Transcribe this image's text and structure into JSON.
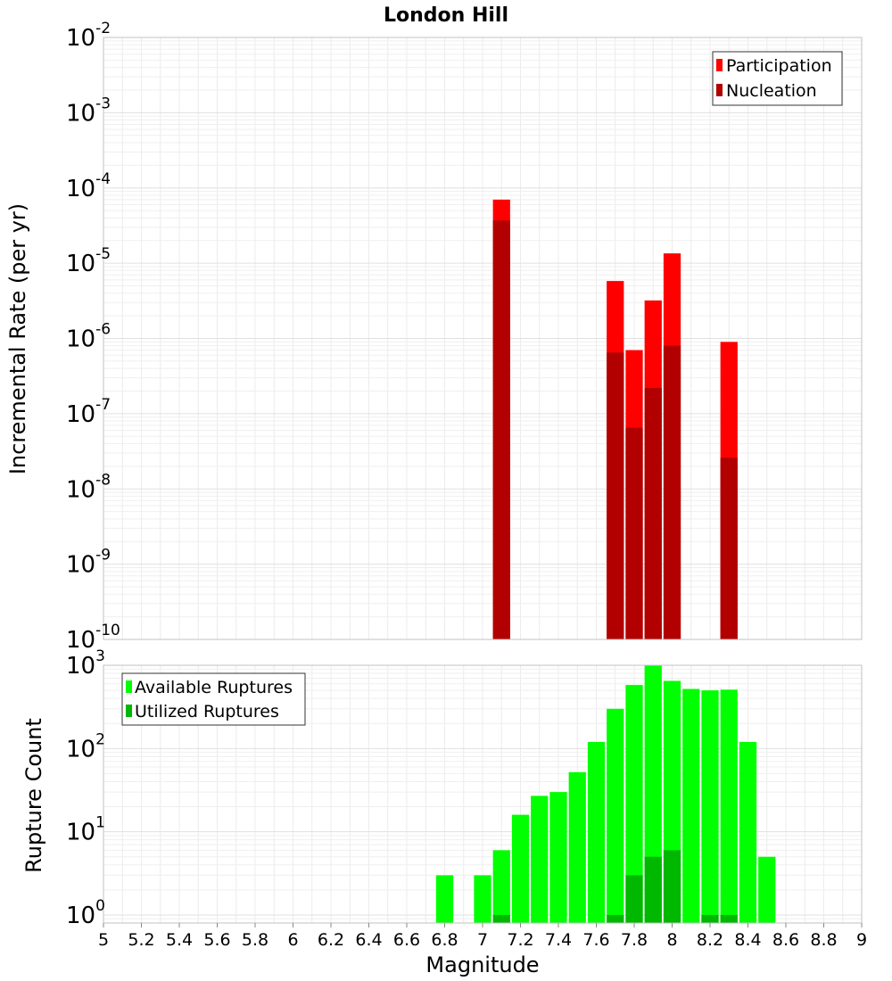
{
  "chart_data": [
    {
      "type": "bar",
      "title": "London Hill",
      "ylabel": "Incremental Rate (per yr)",
      "xlabel": "",
      "scale": "log",
      "ylim": [
        1e-10,
        0.01
      ],
      "xlim": [
        5,
        9
      ],
      "grid": true,
      "legend_position": "top-right",
      "y_ticks": [
        {
          "exp": "-10"
        },
        {
          "exp": "-9"
        },
        {
          "exp": "-8"
        },
        {
          "exp": "-7"
        },
        {
          "exp": "-6"
        },
        {
          "exp": "-5"
        },
        {
          "exp": "-4"
        },
        {
          "exp": "-3"
        },
        {
          "exp": "-2"
        }
      ],
      "series": [
        {
          "name": "Participation",
          "color": "#ff0000",
          "x": [
            7.1,
            7.7,
            7.8,
            7.9,
            8.0,
            8.3
          ],
          "values": [
            7e-05,
            5.8e-06,
            7e-07,
            3.2e-06,
            1.35e-05,
            9e-07
          ]
        },
        {
          "name": "Nucleation",
          "color": "#b20000",
          "x": [
            7.1,
            7.7,
            7.8,
            7.9,
            8.0,
            8.3
          ],
          "values": [
            3.7e-05,
            6.5e-07,
            6.5e-08,
            2.2e-07,
            8e-07,
            2.6e-08
          ]
        }
      ]
    },
    {
      "type": "bar",
      "title": "",
      "ylabel": "Rupture Count",
      "xlabel": "Magnitude",
      "scale": "log",
      "ylim": [
        0.8,
        1000
      ],
      "xlim": [
        5,
        9
      ],
      "grid": true,
      "legend_position": "top-left",
      "y_ticks": [
        {
          "exp": "0"
        },
        {
          "exp": "1"
        },
        {
          "exp": "2"
        },
        {
          "exp": "3"
        }
      ],
      "x_ticks": [
        "5",
        "5.2",
        "5.4",
        "5.6",
        "5.8",
        "6",
        "6.2",
        "6.4",
        "6.6",
        "6.8",
        "7",
        "7.2",
        "7.4",
        "7.6",
        "7.8",
        "8",
        "8.2",
        "8.4",
        "8.6",
        "8.8",
        "9"
      ],
      "series": [
        {
          "name": "Available Ruptures",
          "color": "#00ff00",
          "x": [
            6.8,
            7.0,
            7.1,
            7.2,
            7.3,
            7.4,
            7.5,
            7.6,
            7.7,
            7.8,
            7.9,
            8.0,
            8.1,
            8.2,
            8.3,
            8.4,
            8.5
          ],
          "values": [
            3,
            3,
            6,
            16,
            27,
            30,
            52,
            120,
            300,
            580,
            1000,
            650,
            520,
            500,
            510,
            120,
            5
          ]
        },
        {
          "name": "Utilized Ruptures",
          "color": "#00b800",
          "x": [
            7.1,
            7.7,
            7.8,
            7.9,
            8.0,
            8.2,
            8.3
          ],
          "values": [
            1,
            1,
            3,
            5,
            6,
            1,
            1
          ]
        }
      ]
    }
  ]
}
